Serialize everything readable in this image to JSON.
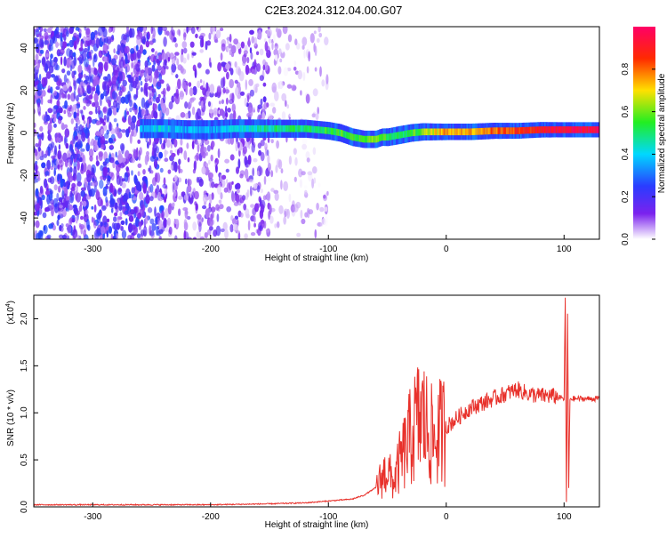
{
  "page_title": "C2E3.2024.312.04.00.G07",
  "colorbar": {
    "label": "Normalized spectral amplitude",
    "ticks": [
      "0.0",
      "0.2",
      "0.4",
      "0.6",
      "0.8"
    ],
    "tick_values": [
      0.0,
      0.2,
      0.4,
      0.6,
      0.8
    ],
    "range": [
      0,
      1
    ],
    "colors": [
      "#ffffff",
      "#7b22ee",
      "#2a3cff",
      "#00d8ff",
      "#22ee22",
      "#ffe000",
      "#ff2a00",
      "#ff0066"
    ]
  },
  "chart_data": [
    {
      "type": "heatmap",
      "title": "",
      "xlabel": "Height of straight line (km)",
      "ylabel": "Frequency (Hz)",
      "xlim": [
        -350,
        130
      ],
      "ylim": [
        -50,
        50
      ],
      "xticks": [
        -300,
        -200,
        -100,
        0,
        100
      ],
      "xtick_labels": [
        "-300",
        "-200",
        "-100",
        "0",
        "100"
      ],
      "yticks": [
        -40,
        -20,
        0,
        20,
        40
      ],
      "ytick_labels": [
        "-40",
        "-20",
        "0",
        "20",
        "40"
      ],
      "signal_trace": {
        "x": [
          -260,
          -240,
          -220,
          -200,
          -180,
          -160,
          -140,
          -120,
          -100,
          -90,
          -80,
          -70,
          -60,
          -55,
          -50,
          -40,
          -30,
          -20,
          -10,
          0,
          10,
          20,
          40,
          60,
          80,
          95,
          100,
          110,
          120,
          130
        ],
        "y": [
          2,
          2,
          1.5,
          1.5,
          2,
          2,
          2,
          2,
          1,
          0,
          -2,
          -3,
          -3,
          -2,
          -2,
          -1,
          0,
          0.5,
          0.5,
          0.5,
          0.5,
          0.5,
          1,
          1,
          1.5,
          1.5,
          1.5,
          1.5,
          1.5,
          1.5
        ],
        "amplitude": [
          0.35,
          0.4,
          0.35,
          0.35,
          0.4,
          0.45,
          0.5,
          0.5,
          0.55,
          0.55,
          0.55,
          0.6,
          0.6,
          0.6,
          0.55,
          0.5,
          0.55,
          0.6,
          0.7,
          0.75,
          0.75,
          0.75,
          0.8,
          0.85,
          0.9,
          0.95,
          0.95,
          0.95,
          0.95,
          0.95
        ]
      },
      "noise_regions": [
        {
          "x": [
            -350,
            -240
          ],
          "y": [
            -50,
            50
          ],
          "density": "high"
        },
        {
          "x": [
            -240,
            -150
          ],
          "y": [
            -50,
            50
          ],
          "density": "medium"
        },
        {
          "x": [
            -150,
            -100
          ],
          "y": [
            -50,
            50
          ],
          "density": "low"
        }
      ]
    },
    {
      "type": "line",
      "title": "",
      "xlabel": "Height of straight line (km)",
      "ylabel": "SNR (10 * v/v)",
      "y_multiplier": "(x10",
      "y_multiplier_exp": "4",
      "y_multiplier_close": ")",
      "xlim": [
        -350,
        130
      ],
      "ylim": [
        0,
        2.25
      ],
      "xticks": [
        -300,
        -200,
        -100,
        0,
        100
      ],
      "xtick_labels": [
        "-300",
        "-200",
        "-100",
        "0",
        "100"
      ],
      "yticks": [
        0,
        0.5,
        1,
        1.5,
        2
      ],
      "ytick_labels": [
        "0.0",
        "0.5",
        "1.0",
        "1.5",
        "2.0"
      ],
      "series": [
        {
          "color": "#e8312b",
          "x": [
            -350,
            -300,
            -250,
            -200,
            -150,
            -120,
            -100,
            -80,
            -70,
            -60,
            -55,
            -50,
            -45,
            -40,
            -35,
            -30,
            -25,
            -20,
            -15,
            -10,
            -5,
            0,
            10,
            20,
            30,
            40,
            50,
            60,
            70,
            80,
            90,
            100,
            101,
            102,
            103,
            104,
            105,
            110,
            120,
            130
          ],
          "y": [
            0.02,
            0.02,
            0.02,
            0.02,
            0.03,
            0.04,
            0.06,
            0.08,
            0.12,
            0.2,
            0.3,
            0.4,
            0.25,
            0.45,
            0.6,
            0.75,
            0.9,
            0.95,
            0.8,
            0.7,
            0.8,
            0.85,
            0.95,
            1.05,
            1.1,
            1.15,
            1.2,
            1.25,
            1.2,
            1.18,
            1.18,
            1.15,
            2.2,
            0.05,
            2.05,
            0.2,
            1.15,
            1.15,
            1.15,
            1.15
          ]
        }
      ]
    }
  ]
}
